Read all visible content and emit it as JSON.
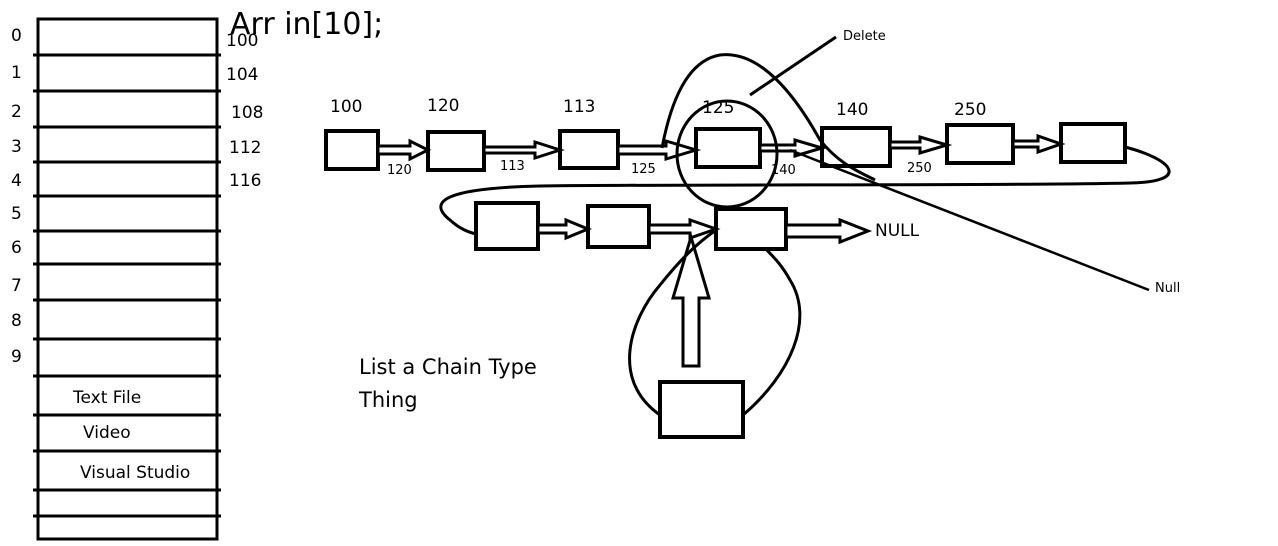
{
  "title": "Arr in[10];",
  "memory": {
    "indices": [
      "0",
      "1",
      "2",
      "3",
      "4",
      "5",
      "6",
      "7",
      "8",
      "9"
    ],
    "addresses": [
      "100",
      "104",
      "108",
      "112",
      "116"
    ],
    "files": [
      "Text File",
      "Video",
      "Visual Studio"
    ]
  },
  "chain_nodes": [
    {
      "label": "100",
      "pointer": "120"
    },
    {
      "label": "120",
      "pointer": "113"
    },
    {
      "label": "113",
      "pointer": "125"
    },
    {
      "label": "125",
      "pointer": "140"
    },
    {
      "label": "140",
      "pointer": "250"
    },
    {
      "label": "250",
      "pointer": ""
    }
  ],
  "second_row_end": "NULL",
  "annotations": {
    "delete": "Delete",
    "null": "Null",
    "note_line1": "List a Chain Type",
    "note_line2": "Thing"
  }
}
